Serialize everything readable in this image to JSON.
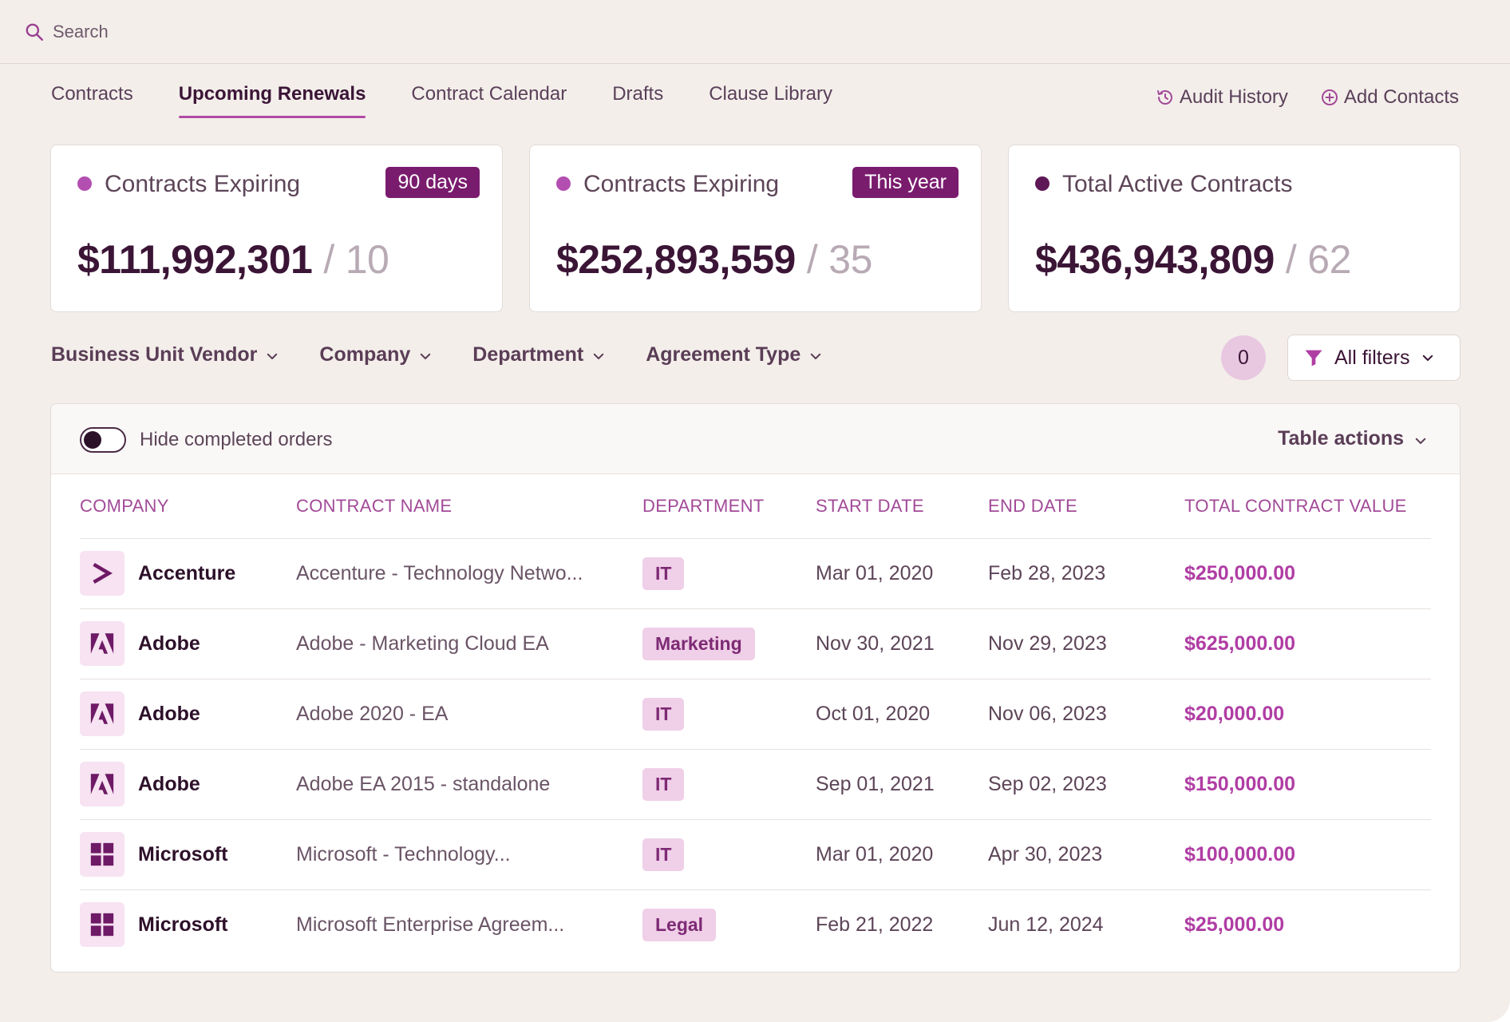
{
  "search": {
    "placeholder": "Search",
    "icon": "search-icon"
  },
  "tabs": [
    {
      "label": "Contracts",
      "active": false
    },
    {
      "label": "Upcoming Renewals",
      "active": true
    },
    {
      "label": "Contract Calendar",
      "active": false
    },
    {
      "label": "Drafts",
      "active": false
    },
    {
      "label": "Clause Library",
      "active": false
    }
  ],
  "tab_actions": {
    "audit_history": "Audit History",
    "add_contacts": "Add Contacts"
  },
  "cards": [
    {
      "title": "Contracts Expiring",
      "badge": "90 days",
      "amount": "$111,992,301",
      "separator": "/",
      "count": "10",
      "dot_color": "#b34fb0",
      "badge_color": "#7a1c6e"
    },
    {
      "title": "Contracts Expiring",
      "badge": "This year",
      "amount": "$252,893,559",
      "separator": "/",
      "count": "35",
      "dot_color": "#b34fb0",
      "badge_color": "#7a1c6e"
    },
    {
      "title": "Total Active Contracts",
      "badge": "",
      "amount": "$436,943,809",
      "separator": "/",
      "count": "62",
      "dot_color": "#5e1856",
      "badge_color": ""
    }
  ],
  "filters": [
    {
      "label": "Business Unit Vendor"
    },
    {
      "label": "Company"
    },
    {
      "label": "Department"
    },
    {
      "label": "Agreement Type"
    }
  ],
  "active_filter_count": "0",
  "all_filters_label": "All filters",
  "table": {
    "hide_completed_label": "Hide completed orders",
    "table_actions_label": "Table actions",
    "columns": [
      "COMPANY",
      "CONTRACT NAME",
      "DEPARTMENT",
      "START DATE",
      "END DATE",
      "TOTAL CONTRACT VALUE"
    ],
    "rows": [
      {
        "company": "Accenture",
        "logo": "accenture-logo-icon",
        "contract": "Accenture - Technology  Netwo...",
        "department": "IT",
        "start": "Mar 01, 2020",
        "end": "Feb 28, 2023",
        "value": "$250,000.00"
      },
      {
        "company": "Adobe",
        "logo": "adobe-logo-icon",
        "contract": "Adobe - Marketing Cloud EA",
        "department": "Marketing",
        "start": "Nov 30, 2021",
        "end": "Nov 29, 2023",
        "value": "$625,000.00"
      },
      {
        "company": "Adobe",
        "logo": "adobe-logo-icon",
        "contract": "Adobe 2020 - EA",
        "department": "IT",
        "start": "Oct 01, 2020",
        "end": "Nov 06, 2023",
        "value": "$20,000.00"
      },
      {
        "company": "Adobe",
        "logo": "adobe-logo-icon",
        "contract": "Adobe EA 2015 - standalone",
        "department": "IT",
        "start": "Sep 01, 2021",
        "end": "Sep 02, 2023",
        "value": "$150,000.00"
      },
      {
        "company": "Microsoft",
        "logo": "microsoft-logo-icon",
        "contract": "Microsoft - Technology...",
        "department": "IT",
        "start": "Mar 01, 2020",
        "end": "Apr 30, 2023",
        "value": "$100,000.00"
      },
      {
        "company": "Microsoft",
        "logo": "microsoft-logo-icon",
        "contract": "Microsoft Enterprise Agreem...",
        "department": "Legal",
        "start": "Feb 21, 2022",
        "end": "Jun 12, 2024",
        "value": "$25,000.00"
      }
    ]
  },
  "colors": {
    "accent": "#b24aa6",
    "background": "#f3eeea",
    "primary_text": "#3b1536"
  }
}
